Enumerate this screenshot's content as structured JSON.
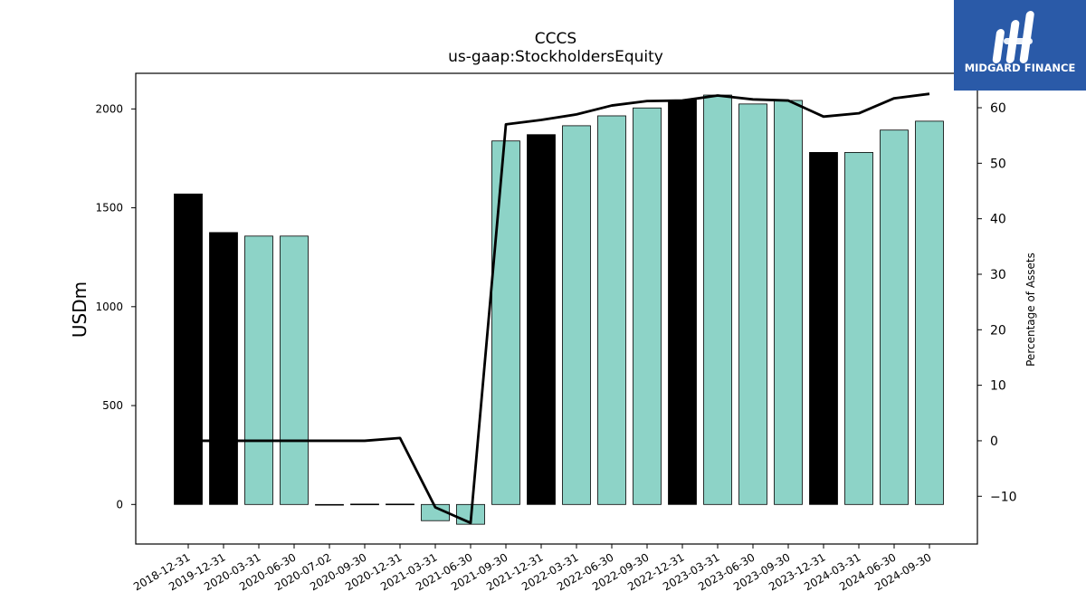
{
  "chart_data": {
    "type": "bar",
    "title": "CCCS",
    "subtitle": "us-gaap:StockholdersEquity",
    "ylabel": "USDm",
    "y2label": "Percentage of Assets",
    "ylim": [
      -200,
      2180
    ],
    "y2lim": [
      -18.6,
      66.2
    ],
    "yticks": [
      0,
      500,
      1000,
      1500,
      2000
    ],
    "y2ticks": [
      -10,
      0,
      10,
      20,
      30,
      40,
      50,
      60
    ],
    "grid": false,
    "categories": [
      "2018-12-31",
      "2019-12-31",
      "2020-03-31",
      "2020-06-30",
      "2020-07-02",
      "2020-09-30",
      "2020-12-31",
      "2021-03-31",
      "2021-06-30",
      "2021-09-30",
      "2021-12-31",
      "2022-03-31",
      "2022-06-30",
      "2022-09-30",
      "2022-12-31",
      "2023-03-31",
      "2023-06-30",
      "2023-09-30",
      "2023-12-31",
      "2024-03-31",
      "2024-06-30",
      "2024-09-30"
    ],
    "series": [
      {
        "kind": "bar",
        "values": [
          1570,
          1375,
          1357,
          1357,
          -2,
          2,
          2,
          -82,
          -100,
          1838,
          1870,
          1915,
          1965,
          2005,
          2045,
          2070,
          2025,
          2043,
          1780,
          1780,
          1893,
          1938
        ],
        "bar_colors": [
          "#000000",
          "#000000",
          "#8dd3c7",
          "#8dd3c7",
          "#000000",
          "#000000",
          "#000000",
          "#8dd3c7",
          "#8dd3c7",
          "#8dd3c7",
          "#000000",
          "#8dd3c7",
          "#8dd3c7",
          "#8dd3c7",
          "#000000",
          "#8dd3c7",
          "#8dd3c7",
          "#8dd3c7",
          "#000000",
          "#8dd3c7",
          "#8dd3c7",
          "#8dd3c7"
        ]
      },
      {
        "kind": "line",
        "axis": "right",
        "color": "#000000",
        "values": [
          0,
          0,
          0,
          0,
          0,
          0,
          0.5,
          -12.0,
          -14.8,
          57.0,
          57.8,
          58.8,
          60.4,
          61.2,
          61.3,
          62.2,
          61.5,
          61.3,
          58.4,
          59.0,
          61.7,
          62.5
        ]
      }
    ]
  },
  "logo": {
    "text": "MIDGARD FINANCE",
    "bg_color": "#2a5aa8"
  }
}
